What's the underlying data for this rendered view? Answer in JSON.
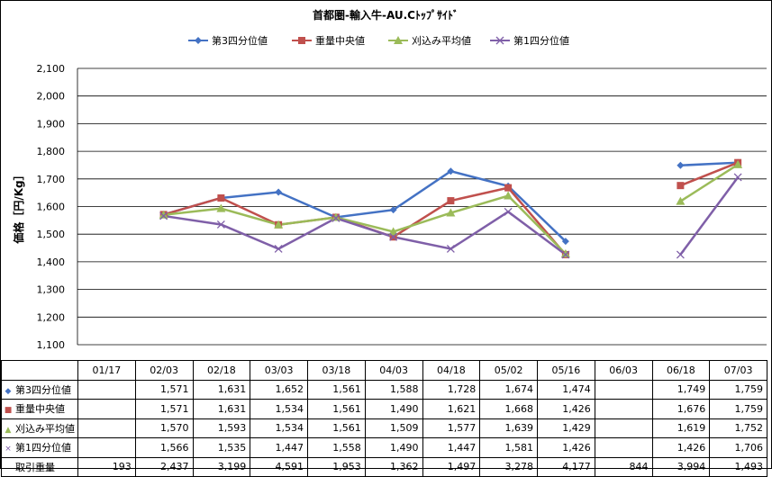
{
  "chart_data": {
    "type": "line",
    "title": "首都圏-輸入牛-AU.Cﾄｯﾌﾟｻｲﾄﾞ",
    "ylabel": "価格［円/Kg］",
    "ylim": [
      1100,
      2100
    ],
    "yticks": [
      1100,
      1200,
      1300,
      1400,
      1500,
      1600,
      1700,
      1800,
      1900,
      2000,
      2100
    ],
    "ytick_labels": [
      "1,100",
      "1,200",
      "1,300",
      "1,400",
      "1,500",
      "1,600",
      "1,700",
      "1,800",
      "1,900",
      "2,000",
      "2,100"
    ],
    "legend_position": "top",
    "grid": true,
    "categories": [
      "01/17",
      "02/03",
      "02/18",
      "03/03",
      "03/18",
      "04/03",
      "04/18",
      "05/02",
      "05/16",
      "06/03",
      "06/18",
      "07/03"
    ],
    "series": [
      {
        "name": "第3四分位値",
        "color": "#4472c4",
        "marker": "diamond",
        "marker_symbol": "◆",
        "values": [
          null,
          1571,
          1631,
          1652,
          1561,
          1588,
          1728,
          1674,
          1474,
          null,
          1749,
          1759
        ],
        "labels": [
          "",
          "1,571",
          "1,631",
          "1,652",
          "1,561",
          "1,588",
          "1,728",
          "1,674",
          "1,474",
          "",
          "1,749",
          "1,759"
        ]
      },
      {
        "name": "重量中央値",
        "color": "#c0504d",
        "marker": "square",
        "marker_symbol": "■",
        "values": [
          null,
          1571,
          1631,
          1534,
          1561,
          1490,
          1621,
          1668,
          1426,
          null,
          1676,
          1759
        ],
        "labels": [
          "",
          "1,571",
          "1,631",
          "1,534",
          "1,561",
          "1,490",
          "1,621",
          "1,668",
          "1,426",
          "",
          "1,676",
          "1,759"
        ]
      },
      {
        "name": "刈込み平均値",
        "color": "#9bbb59",
        "marker": "triangle",
        "marker_symbol": "▲",
        "values": [
          null,
          1570,
          1593,
          1534,
          1561,
          1509,
          1577,
          1639,
          1429,
          null,
          1619,
          1752
        ],
        "labels": [
          "",
          "1,570",
          "1,593",
          "1,534",
          "1,561",
          "1,509",
          "1,577",
          "1,639",
          "1,429",
          "",
          "1,619",
          "1,752"
        ]
      },
      {
        "name": "第1四分位値",
        "color": "#7f5fa8",
        "marker": "x",
        "marker_symbol": "×",
        "values": [
          null,
          1566,
          1535,
          1447,
          1558,
          1490,
          1447,
          1581,
          1426,
          null,
          1426,
          1706
        ],
        "labels": [
          "",
          "1,566",
          "1,535",
          "1,447",
          "1,558",
          "1,490",
          "1,447",
          "1,581",
          "1,426",
          "",
          "1,426",
          "1,706"
        ]
      }
    ],
    "table_extra_row": {
      "name": "取引重量",
      "labels": [
        "193",
        "2,437",
        "3,199",
        "4,591",
        "1,953",
        "1,362",
        "1,497",
        "3,278",
        "4,177",
        "844",
        "3,994",
        "1,493"
      ]
    }
  }
}
